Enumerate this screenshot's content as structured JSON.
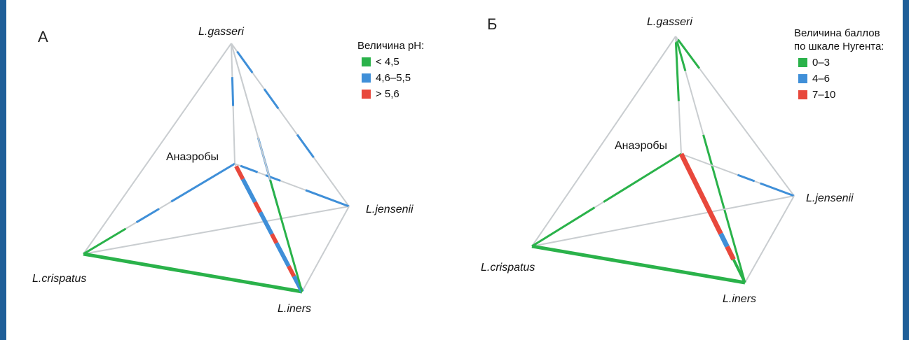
{
  "colors": {
    "green": "#2ab24a",
    "blue": "#3f8fd8",
    "red": "#e8483c",
    "grey": "#c9cdd0",
    "frame": "#1f5f99"
  },
  "panel_a": {
    "letter": "А",
    "legend_title": "Величина pH:",
    "legend": [
      {
        "label": "< 4,5",
        "color": "green"
      },
      {
        "label": "4,6–5,5",
        "color": "blue"
      },
      {
        "label": "> 5,6",
        "color": "red"
      }
    ],
    "vertices": {
      "gasseri": "L.gasseri",
      "anaerobes": "Анаэробы",
      "jensenii": "L.jensenii",
      "crispatus": "L.crispatus",
      "iners": "L.iners"
    }
  },
  "panel_b": {
    "letter": "Б",
    "legend_title_line1": "Величина баллов",
    "legend_title_line2": "по шкале Нугента:",
    "legend": [
      {
        "label": "0–3",
        "color": "green"
      },
      {
        "label": "4–6",
        "color": "blue"
      },
      {
        "label": "7–10",
        "color": "red"
      }
    ],
    "vertices": {
      "gasseri": "L.gasseri",
      "anaerobes": "Анаэробы",
      "jensenii": "L.jensenii",
      "crispatus": "L.crispatus",
      "iners": "L.iners"
    }
  }
}
